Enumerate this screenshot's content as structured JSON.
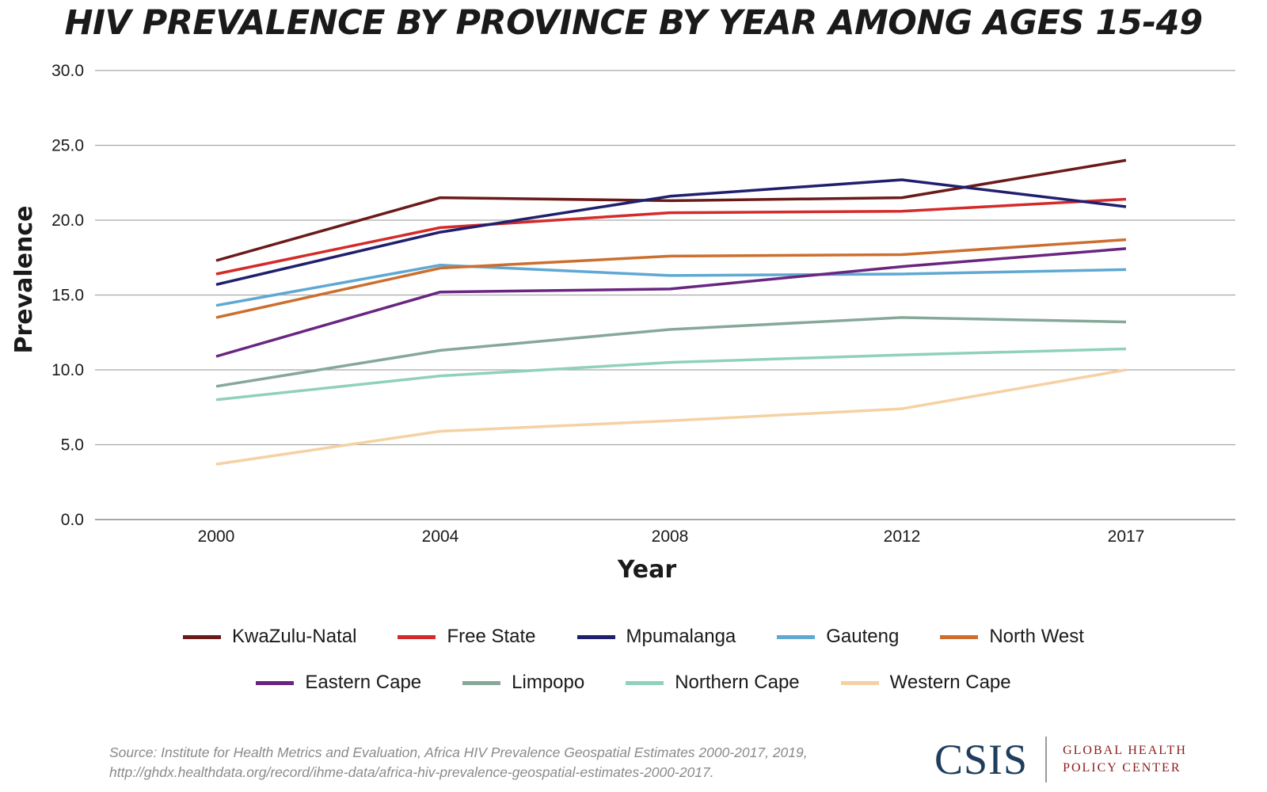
{
  "chart_data": {
    "type": "line",
    "title": "HIV PREVALENCE BY PROVINCE BY YEAR AMONG AGES 15-49",
    "xlabel": "Year",
    "ylabel": "Prevalence",
    "categories": [
      "2000",
      "2004",
      "2008",
      "2012",
      "2017"
    ],
    "ylim": [
      0,
      30
    ],
    "yticks": [
      "0.0",
      "5.0",
      "10.0",
      "15.0",
      "20.0",
      "25.0",
      "30.0"
    ],
    "grid": true,
    "legend_position": "bottom",
    "series": [
      {
        "name": "KwaZulu-Natal",
        "color": "#6b1a1a",
        "values": [
          17.3,
          21.5,
          21.3,
          21.5,
          24.0
        ]
      },
      {
        "name": "Free State",
        "color": "#d42a2a",
        "values": [
          16.4,
          19.5,
          20.5,
          20.6,
          21.4
        ]
      },
      {
        "name": "Mpumalanga",
        "color": "#1f1f6e",
        "values": [
          15.7,
          19.2,
          21.6,
          22.7,
          20.9
        ]
      },
      {
        "name": "Gauteng",
        "color": "#5ea8d2",
        "values": [
          14.3,
          17.0,
          16.3,
          16.4,
          16.7
        ]
      },
      {
        "name": "North West",
        "color": "#cc6f2e",
        "values": [
          13.5,
          16.8,
          17.6,
          17.7,
          18.7
        ]
      },
      {
        "name": "Eastern Cape",
        "color": "#6a2580",
        "values": [
          10.9,
          15.2,
          15.4,
          16.9,
          18.1
        ]
      },
      {
        "name": "Limpopo",
        "color": "#86a898",
        "values": [
          8.9,
          11.3,
          12.7,
          13.5,
          13.2
        ]
      },
      {
        "name": "Northern Cape",
        "color": "#8fd1b9",
        "values": [
          8.0,
          9.6,
          10.5,
          11.0,
          11.4
        ]
      },
      {
        "name": "Western Cape",
        "color": "#f5d1a3",
        "values": [
          3.7,
          5.9,
          6.6,
          7.4,
          10.0
        ]
      }
    ]
  },
  "source": "Source: Institute for Health Metrics and Evaluation, Africa HIV Prevalence Geospatial Estimates 2000-2017, 2019, http://ghdx.healthdata.org/record/ihme-data/africa-hiv-prevalence-geospatial-estimates-2000-2017.",
  "logo": {
    "org": "CSIS",
    "center_line1": "GLOBAL HEALTH",
    "center_line2": "POLICY CENTER"
  }
}
